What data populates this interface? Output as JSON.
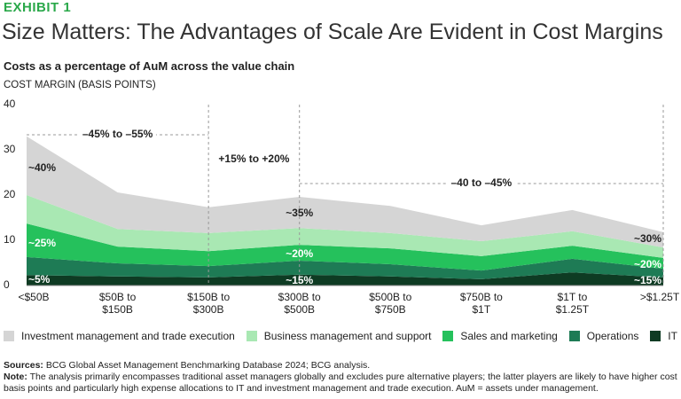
{
  "exhibit": "EXHIBIT 1",
  "title": "Size Matters: The Advantages of Scale Are Evident in Cost Margins",
  "chart_data": {
    "type": "stacked-area",
    "subtitle": "Costs as a percentage of AuM across the value chain",
    "y_label": "COST MARGIN (BASIS POINTS)",
    "categories": [
      "<$50B",
      "$50B to $150B",
      "$150B to $300B",
      "$300B to $500B",
      "$500B to $750B",
      "$750B to $1T",
      "$1T to $1.25T",
      ">$1.25T"
    ],
    "ylim": [
      0,
      40
    ],
    "yticks": [
      0,
      10,
      20,
      30,
      40
    ],
    "grid": false,
    "series": [
      {
        "name": "Investment management and trade execution",
        "color": "#d5d5d5",
        "values": [
          13,
          8.1,
          5.7,
          6.9,
          6,
          3.5,
          4.7,
          3.4
        ]
      },
      {
        "name": "Business management and support",
        "color": "#a9e8b3",
        "values": [
          6.3,
          3.9,
          4,
          3.7,
          3.4,
          3.3,
          3.2,
          2.3
        ]
      },
      {
        "name": "Sales and marketing",
        "color": "#25c15c",
        "values": [
          7.4,
          3.7,
          3.3,
          3.5,
          3.5,
          3.2,
          2.9,
          2.4
        ]
      },
      {
        "name": "Operations",
        "color": "#1e7b55",
        "values": [
          4,
          2.9,
          2.5,
          3.1,
          2.7,
          1.9,
          3,
          1.9
        ]
      },
      {
        "name": "IT",
        "color": "#0e3b23",
        "values": [
          2.3,
          2,
          1.8,
          2.4,
          2,
          1.4,
          2.9,
          1.8
        ]
      }
    ],
    "ranges": [
      "–45% to –55%",
      "+15% to +20%",
      "–40 to –45%"
    ],
    "annotations": [
      "~40%",
      "~25%",
      "~5%",
      "~35%",
      "~20%",
      "~15%",
      "~30%",
      "~20%",
      "~15%"
    ]
  },
  "footer": {
    "sources_label": "Sources:",
    "sources": "BCG Global Asset Management Benchmarking Database 2024; BCG analysis.",
    "note_label": "Note:",
    "note": "The analysis primarily encompasses traditional asset managers globally and excludes pure alternative players; the latter players are likely to have higher cost basis points and particularly high expense allocations to IT and investment management and trade execution. AuM = assets under management."
  }
}
